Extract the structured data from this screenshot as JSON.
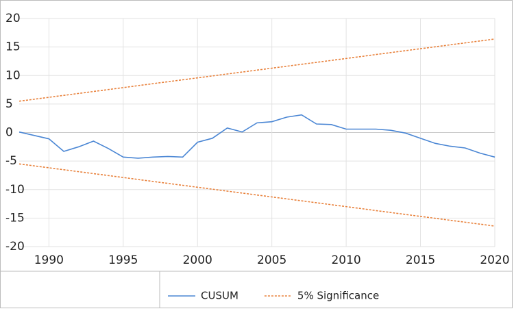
{
  "chart_data": {
    "type": "line",
    "x": [
      1988,
      1989,
      1990,
      1991,
      1992,
      1993,
      1994,
      1995,
      1996,
      1997,
      1998,
      1999,
      2000,
      2001,
      2002,
      2003,
      2004,
      2005,
      2006,
      2007,
      2008,
      2009,
      2010,
      2011,
      2012,
      2013,
      2014,
      2015,
      2016,
      2017,
      2018,
      2019,
      2020
    ],
    "series": [
      {
        "name": "CUSUM",
        "color": "#4a86d4",
        "style": "solid",
        "values": [
          0.1,
          -0.5,
          -1.1,
          -3.3,
          -2.5,
          -1.5,
          -2.8,
          -4.3,
          -4.5,
          -4.3,
          -4.2,
          -4.3,
          -1.7,
          -1.0,
          0.8,
          0.1,
          1.7,
          1.9,
          2.7,
          3.1,
          1.5,
          1.4,
          0.6,
          0.6,
          0.6,
          0.4,
          -0.1,
          -1.0,
          -1.9,
          -2.4,
          -2.7,
          -3.6,
          -4.3
        ]
      },
      {
        "name": "5% Significance",
        "color": "#e8803a",
        "style": "dotted",
        "values": [
          5.5,
          5.84,
          6.18,
          6.52,
          6.86,
          7.2,
          7.54,
          7.88,
          8.23,
          8.57,
          8.91,
          9.25,
          9.59,
          9.93,
          10.27,
          10.61,
          10.95,
          11.29,
          11.63,
          11.97,
          12.31,
          12.65,
          12.99,
          13.33,
          13.68,
          14.02,
          14.36,
          14.7,
          15.04,
          15.38,
          15.72,
          16.06,
          16.4
        ],
        "lower_values": [
          -5.5,
          -5.84,
          -6.18,
          -6.52,
          -6.86,
          -7.2,
          -7.54,
          -7.88,
          -8.23,
          -8.57,
          -8.91,
          -9.25,
          -9.59,
          -9.93,
          -10.27,
          -10.61,
          -10.95,
          -11.29,
          -11.63,
          -11.97,
          -12.31,
          -12.65,
          -12.99,
          -13.33,
          -13.68,
          -14.02,
          -14.36,
          -14.7,
          -15.04,
          -15.38,
          -15.72,
          -16.06,
          -16.4
        ]
      }
    ],
    "xlim": [
      1988,
      2020
    ],
    "xticks": [
      1990,
      1995,
      2000,
      2005,
      2010,
      2015,
      2020
    ],
    "ylim": [
      -20,
      20
    ],
    "yticks": [
      -20,
      -15,
      -10,
      -5,
      0,
      5,
      10,
      15,
      20
    ],
    "grid": true,
    "legend": "bottom"
  }
}
